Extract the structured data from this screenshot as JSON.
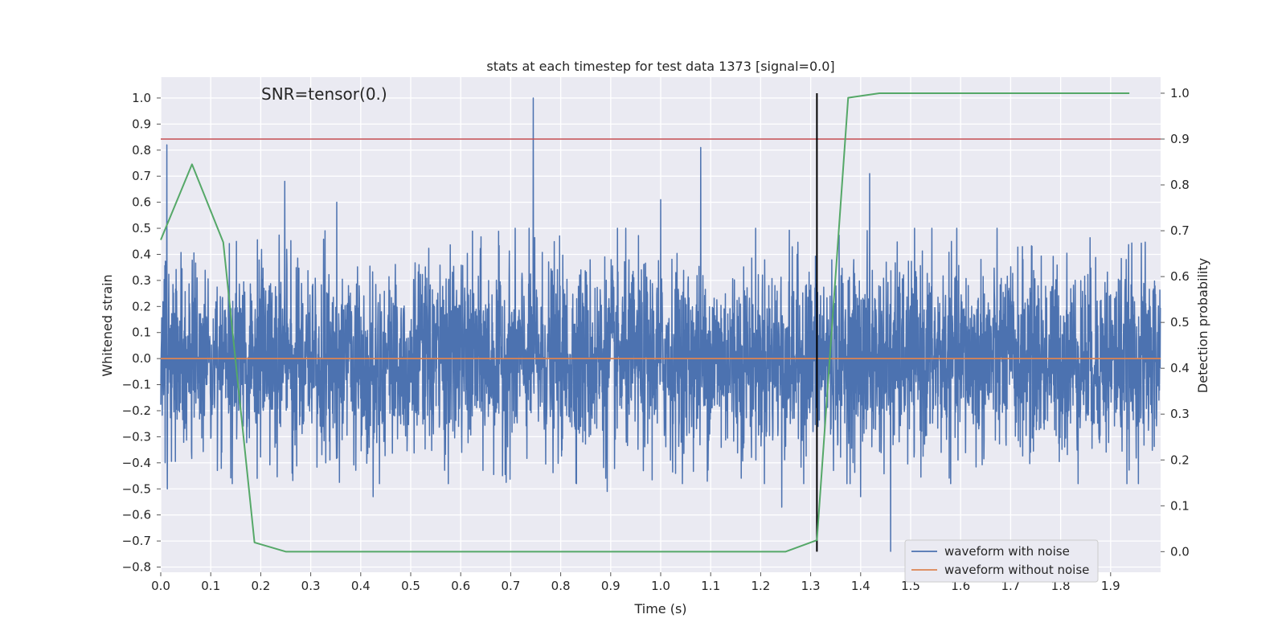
{
  "chart_data": {
    "type": "line",
    "title": "stats at each timestep for test data 1373 [signal=0.0]",
    "xlabel": "Time (s)",
    "ylabel": "Whitened strain",
    "y2label": "Detection probability",
    "annotation": "SNR=tensor(0.)",
    "xlim": [
      0.0,
      2.0
    ],
    "ylim": [
      -0.82,
      1.08
    ],
    "y2lim": [
      -0.045,
      1.035
    ],
    "x_ticks": [
      0.0,
      0.1,
      0.2,
      0.3,
      0.4,
      0.5,
      0.6,
      0.7,
      0.8,
      0.9,
      1.0,
      1.1,
      1.2,
      1.3,
      1.4,
      1.5,
      1.6,
      1.7,
      1.8,
      1.9
    ],
    "x_tick_labels": [
      "0.0",
      "0.1",
      "0.2",
      "0.3",
      "0.4",
      "0.5",
      "0.6",
      "0.7",
      "0.8",
      "0.9",
      "1.0",
      "1.1",
      "1.2",
      "1.3",
      "1.4",
      "1.5",
      "1.6",
      "1.7",
      "1.8",
      "1.9"
    ],
    "y_ticks": [
      1.0,
      0.9,
      0.8,
      0.7,
      0.6,
      0.5,
      0.4,
      0.3,
      0.2,
      0.1,
      0.0,
      -0.1,
      -0.2,
      -0.3,
      -0.4,
      -0.5,
      -0.6,
      -0.7,
      -0.8
    ],
    "y_tick_labels": [
      "1.0",
      "0.9",
      "0.8",
      "0.7",
      "0.6",
      "0.5",
      "0.4",
      "0.3",
      "0.2",
      "0.1",
      "0.0",
      "−0.1",
      "−0.2",
      "−0.3",
      "−0.4",
      "−0.5",
      "−0.6",
      "−0.7",
      "−0.8"
    ],
    "y2_ticks": [
      1.0,
      0.9,
      0.8,
      0.7,
      0.6,
      0.5,
      0.4,
      0.3,
      0.2,
      0.1,
      0.0
    ],
    "y2_tick_labels": [
      "1.0",
      "0.9",
      "0.8",
      "0.7",
      "0.6",
      "0.5",
      "0.4",
      "0.3",
      "0.2",
      "0.1",
      "0.0"
    ],
    "grid": true,
    "legend_position": "bottom-right",
    "series": [
      {
        "name": "waveform with noise",
        "color": "#4c72b0",
        "axis": "left",
        "sample_count": 4096,
        "std": 0.18,
        "peaks": [
          {
            "x": 0.012,
            "y": 0.82
          },
          {
            "x": 0.013,
            "y": -0.5
          },
          {
            "x": 0.248,
            "y": 0.68
          },
          {
            "x": 0.352,
            "y": 0.6
          },
          {
            "x": 0.425,
            "y": -0.53
          },
          {
            "x": 0.745,
            "y": 1.0
          },
          {
            "x": 0.893,
            "y": -0.51
          },
          {
            "x": 1.0,
            "y": 0.61
          },
          {
            "x": 1.08,
            "y": 0.81
          },
          {
            "x": 1.242,
            "y": -0.57
          },
          {
            "x": 1.418,
            "y": 0.71
          },
          {
            "x": 1.4,
            "y": -0.53
          },
          {
            "x": 1.46,
            "y": -0.74
          }
        ]
      },
      {
        "name": "waveform without noise",
        "color": "#dd8452",
        "axis": "left",
        "x": [
          0.0,
          2.0
        ],
        "y": [
          0.0,
          0.0
        ]
      },
      {
        "name": "",
        "color": "#55a868",
        "axis": "right",
        "x": [
          0.0,
          0.0625,
          0.125,
          0.1875,
          0.25,
          1.25,
          1.3125,
          1.375,
          1.4375,
          1.9375
        ],
        "y": [
          0.68,
          0.845,
          0.675,
          0.02,
          0.0,
          0.0,
          0.025,
          0.99,
          1.0,
          1.0
        ]
      }
    ],
    "threshold": {
      "axis": "right",
      "y": 0.9,
      "color": "#c44e52"
    },
    "marker_line": {
      "x": 1.3125,
      "y_from": 0.0,
      "y_to": 1.0,
      "axis": "right",
      "color": "#000000"
    }
  }
}
